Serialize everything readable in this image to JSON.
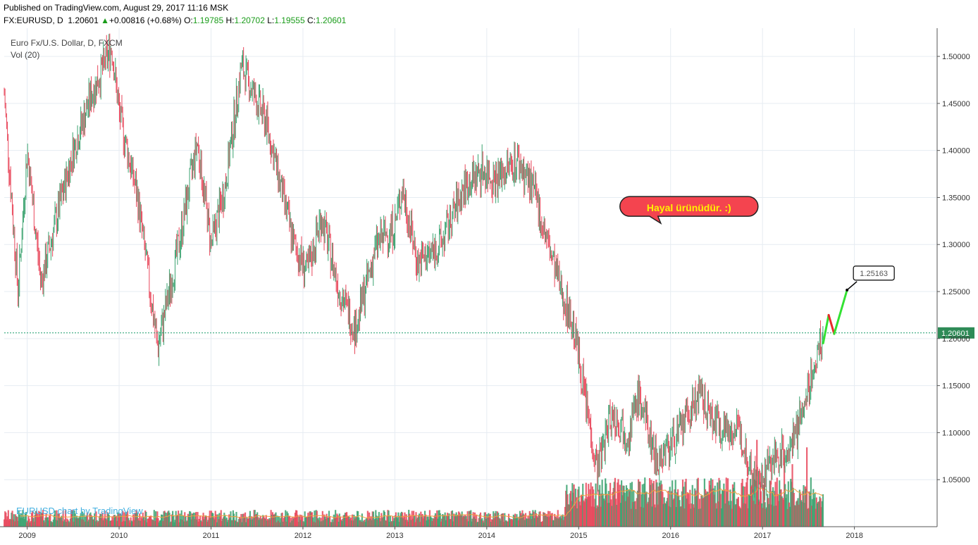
{
  "header": {
    "published": "Published on TradingView.com, August 29, 2017 11:16 MSK",
    "symbol": "FX:EURUSD, D",
    "last": "1.20601",
    "change": "+0.00816 (+0.68%)",
    "o_label": "O:",
    "o_value": "1.19785",
    "h_label": "H:",
    "h_value": "1.20702",
    "l_label": "L:",
    "l_value": "1.19555",
    "c_label": "C:",
    "c_value": "1.20601"
  },
  "legend": {
    "series_title": "Euro Fx/U.S. Dollar, D, FXCM",
    "volume_label": "Vol (20)"
  },
  "watermark": "EURUSD chart by TradingView",
  "colors": {
    "up": "#3aa26f",
    "down": "#e8465a",
    "projection_up": "#33e233",
    "projection_down": "#e82a2a",
    "volume_ma": "#f0a040",
    "grid": "#e6ecf2",
    "last_price_line": "#1a9c6a",
    "bubble_fill": "#f4444f"
  },
  "chart_data": {
    "type": "candlestick",
    "symbol": "EURUSD",
    "ylim": [
      1.0,
      1.53
    ],
    "xlim": [
      2008.75,
      2018.9
    ],
    "y_ticks": [
      "1.50000",
      "1.45000",
      "1.40000",
      "1.35000",
      "1.30000",
      "1.25000",
      "1.20000",
      "1.15000",
      "1.10000",
      "1.05000"
    ],
    "x_ticks": [
      "2009",
      "2010",
      "2011",
      "2012",
      "2013",
      "2014",
      "2015",
      "2016",
      "2017",
      "2018"
    ],
    "last_price_label": "1.20601",
    "last_price": 1.20601,
    "price_path": [
      {
        "t": 2008.75,
        "p": 1.46
      },
      {
        "t": 2008.9,
        "p": 1.25
      },
      {
        "t": 2009.0,
        "p": 1.4
      },
      {
        "t": 2009.15,
        "p": 1.26
      },
      {
        "t": 2009.3,
        "p": 1.32
      },
      {
        "t": 2009.5,
        "p": 1.4
      },
      {
        "t": 2009.7,
        "p": 1.46
      },
      {
        "t": 2009.92,
        "p": 1.51
      },
      {
        "t": 2010.0,
        "p": 1.44
      },
      {
        "t": 2010.2,
        "p": 1.35
      },
      {
        "t": 2010.42,
        "p": 1.19
      },
      {
        "t": 2010.65,
        "p": 1.3
      },
      {
        "t": 2010.85,
        "p": 1.41
      },
      {
        "t": 2011.0,
        "p": 1.3
      },
      {
        "t": 2011.15,
        "p": 1.36
      },
      {
        "t": 2011.33,
        "p": 1.49
      },
      {
        "t": 2011.6,
        "p": 1.43
      },
      {
        "t": 2011.9,
        "p": 1.3
      },
      {
        "t": 2012.05,
        "p": 1.27
      },
      {
        "t": 2012.2,
        "p": 1.33
      },
      {
        "t": 2012.4,
        "p": 1.25
      },
      {
        "t": 2012.57,
        "p": 1.21
      },
      {
        "t": 2012.8,
        "p": 1.3
      },
      {
        "t": 2013.0,
        "p": 1.32
      },
      {
        "t": 2013.08,
        "p": 1.36
      },
      {
        "t": 2013.25,
        "p": 1.28
      },
      {
        "t": 2013.5,
        "p": 1.3
      },
      {
        "t": 2013.75,
        "p": 1.36
      },
      {
        "t": 2013.95,
        "p": 1.38
      },
      {
        "t": 2014.1,
        "p": 1.37
      },
      {
        "t": 2014.33,
        "p": 1.39
      },
      {
        "t": 2014.5,
        "p": 1.36
      },
      {
        "t": 2014.75,
        "p": 1.27
      },
      {
        "t": 2014.95,
        "p": 1.21
      },
      {
        "t": 2015.1,
        "p": 1.12
      },
      {
        "t": 2015.2,
        "p": 1.06
      },
      {
        "t": 2015.35,
        "p": 1.12
      },
      {
        "t": 2015.55,
        "p": 1.1
      },
      {
        "t": 2015.65,
        "p": 1.14
      },
      {
        "t": 2015.85,
        "p": 1.07
      },
      {
        "t": 2016.1,
        "p": 1.1
      },
      {
        "t": 2016.3,
        "p": 1.14
      },
      {
        "t": 2016.5,
        "p": 1.11
      },
      {
        "t": 2016.75,
        "p": 1.1
      },
      {
        "t": 2016.95,
        "p": 1.04
      },
      {
        "t": 2017.1,
        "p": 1.07
      },
      {
        "t": 2017.35,
        "p": 1.09
      },
      {
        "t": 2017.5,
        "p": 1.15
      },
      {
        "t": 2017.66,
        "p": 1.206
      }
    ],
    "projection": [
      {
        "t": 2017.66,
        "p": 1.195
      },
      {
        "t": 2017.72,
        "p": 1.225
      },
      {
        "t": 2017.78,
        "p": 1.205
      },
      {
        "t": 2017.92,
        "p": 1.25163
      }
    ],
    "projection_label": "1.25163",
    "annotation": {
      "text": "Hayal ürünüdür. :)",
      "t": 2016.2,
      "p": 1.339
    }
  }
}
